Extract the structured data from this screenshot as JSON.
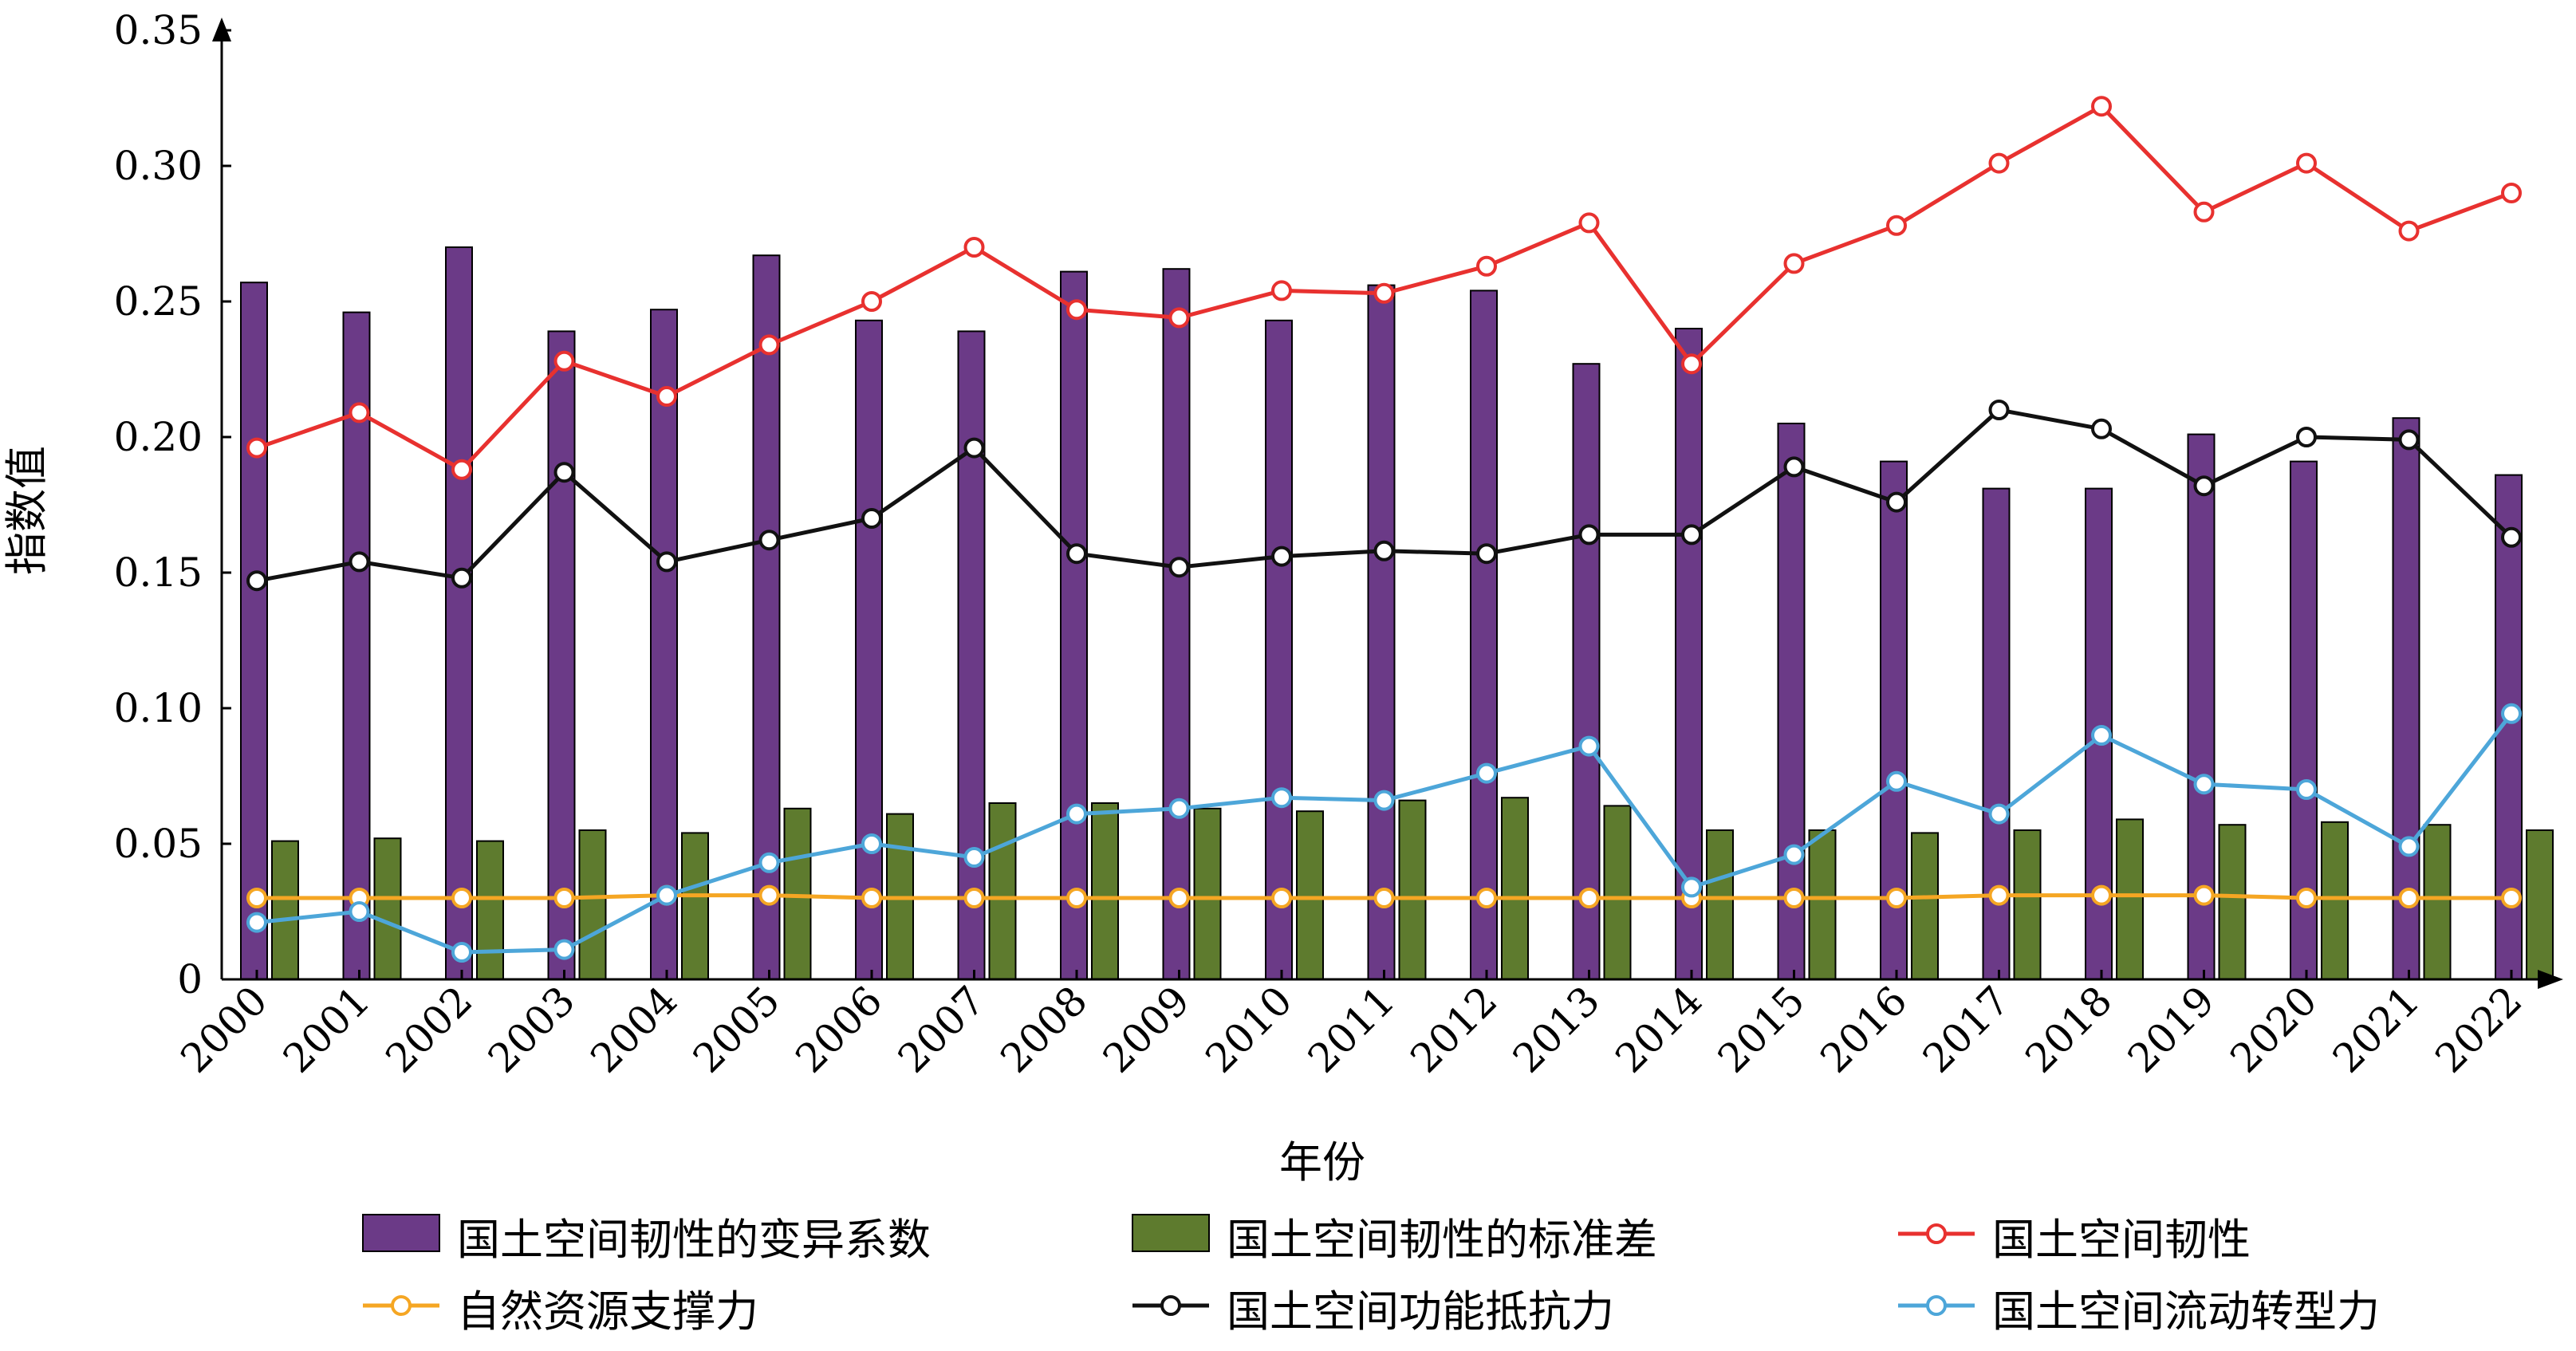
{
  "chart_data": {
    "type": "bar+line",
    "categories": [
      "2000",
      "2001",
      "2002",
      "2003",
      "2004",
      "2005",
      "2006",
      "2007",
      "2008",
      "2009",
      "2010",
      "2011",
      "2012",
      "2013",
      "2014",
      "2015",
      "2016",
      "2017",
      "2018",
      "2019",
      "2020",
      "2021",
      "2022"
    ],
    "bar_series": [
      {
        "name": "国土空间韧性的变异系数",
        "color": "#6b3a87",
        "values": [
          0.257,
          0.246,
          0.27,
          0.239,
          0.247,
          0.267,
          0.243,
          0.239,
          0.261,
          0.262,
          0.243,
          0.256,
          0.254,
          0.227,
          0.24,
          0.205,
          0.191,
          0.181,
          0.181,
          0.201,
          0.191,
          0.207,
          0.186
        ]
      },
      {
        "name": "国土空间韧性的标准差",
        "color": "#5e7b2e",
        "values": [
          0.051,
          0.052,
          0.051,
          0.055,
          0.054,
          0.063,
          0.061,
          0.065,
          0.065,
          0.063,
          0.062,
          0.066,
          0.067,
          0.064,
          0.055,
          0.055,
          0.054,
          0.055,
          0.059,
          0.057,
          0.058,
          0.057,
          0.055
        ]
      }
    ],
    "line_series": [
      {
        "name": "国土空间韧性",
        "color": "#e8312f",
        "values": [
          0.196,
          0.209,
          0.188,
          0.228,
          0.215,
          0.234,
          0.25,
          0.27,
          0.247,
          0.244,
          0.254,
          0.253,
          0.263,
          0.279,
          0.227,
          0.264,
          0.278,
          0.301,
          0.322,
          0.283,
          0.301,
          0.276,
          0.29
        ]
      },
      {
        "name": "自然资源支撑力",
        "color": "#f5a623",
        "values": [
          0.03,
          0.03,
          0.03,
          0.03,
          0.031,
          0.031,
          0.03,
          0.03,
          0.03,
          0.03,
          0.03,
          0.03,
          0.03,
          0.03,
          0.03,
          0.03,
          0.03,
          0.031,
          0.031,
          0.031,
          0.03,
          0.03,
          0.03
        ]
      },
      {
        "name": "国土空间功能抵抗力",
        "color": "#111111",
        "values": [
          0.147,
          0.154,
          0.148,
          0.187,
          0.154,
          0.162,
          0.17,
          0.196,
          0.157,
          0.152,
          0.156,
          0.158,
          0.157,
          0.164,
          0.164,
          0.189,
          0.176,
          0.21,
          0.203,
          0.182,
          0.2,
          0.199,
          0.163
        ]
      },
      {
        "name": "国土空间流动转型力",
        "color": "#4da6d9",
        "values": [
          0.021,
          0.025,
          0.01,
          0.011,
          0.031,
          0.043,
          0.05,
          0.045,
          0.061,
          0.063,
          0.067,
          0.066,
          0.076,
          0.086,
          0.034,
          0.046,
          0.073,
          0.061,
          0.09,
          0.072,
          0.07,
          0.049,
          0.098
        ]
      }
    ],
    "yticks": [
      "0",
      "0.05",
      "0.10",
      "0.15",
      "0.20",
      "0.25",
      "0.30",
      "0.35"
    ],
    "ylim": [
      0,
      0.35
    ],
    "xlabel": "年份",
    "ylabel": "指数值",
    "legend_position": "bottom"
  }
}
